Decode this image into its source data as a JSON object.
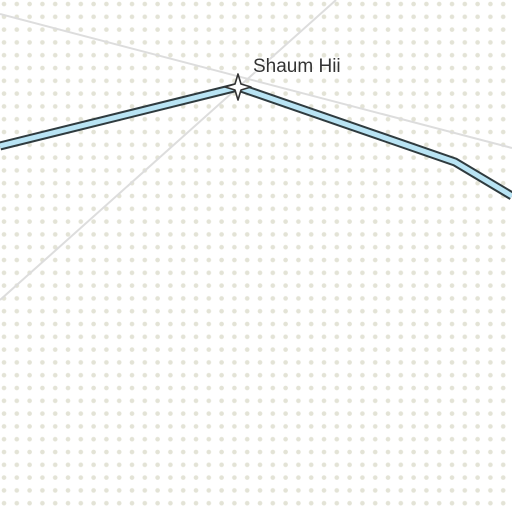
{
  "map": {
    "peak": {
      "name": "Shaum Hii",
      "icon": "peak-star-icon"
    },
    "colors": {
      "background": "#ffffff",
      "dot_pattern": "#e3e3d6",
      "boundary_line": "#dddddd",
      "route_fill": "#b9e4f4",
      "route_casing": "#2f3b3f",
      "peak_marker_fill": "#ffffff",
      "peak_marker_stroke": "#333333"
    }
  }
}
